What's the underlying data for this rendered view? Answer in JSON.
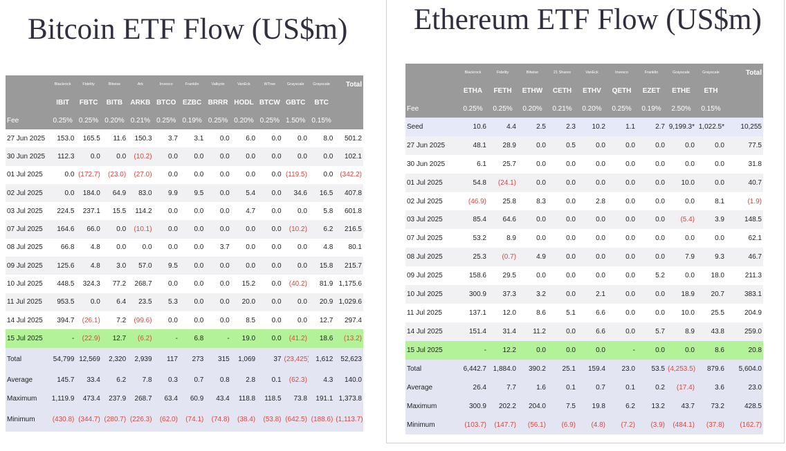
{
  "btc": {
    "title": "Bitcoin ETF Flow (US$m)",
    "providers": [
      "Blackrock",
      "Fidelity",
      "Bitwise",
      "Ark",
      "Invesco",
      "Franklin",
      "Valkyrie",
      "VanEck",
      "WTree",
      "Grayscale",
      "Grayscale"
    ],
    "total_label": "Total",
    "tickers": [
      "IBIT",
      "FBTC",
      "BITB",
      "ARKB",
      "BTCO",
      "EZBC",
      "BRRR",
      "HODL",
      "BTCW",
      "GBTC",
      "BTC"
    ],
    "fee_label": "Fee",
    "fees": [
      "0.25%",
      "0.25%",
      "0.20%",
      "0.21%",
      "0.25%",
      "0.19%",
      "0.25%",
      "0.20%",
      "0.25%",
      "1.50%",
      "0.15%"
    ],
    "rows": [
      {
        "date": "27 Jun 2025",
        "v": [
          "153.0",
          "165.5",
          "11.6",
          "150.3",
          "3.7",
          "3.1",
          "0.0",
          "6.0",
          "0.0",
          "0.0",
          "8.0"
        ],
        "total": "501.2"
      },
      {
        "date": "30 Jun 2025",
        "v": [
          "112.3",
          "0.0",
          "0.0",
          "(10.2)",
          "0.0",
          "0.0",
          "0.0",
          "0.0",
          "0.0",
          "0.0",
          "0.0"
        ],
        "total": "102.1"
      },
      {
        "date": "01 Jul 2025",
        "v": [
          "0.0",
          "(172.7)",
          "(23.0)",
          "(27.0)",
          "0.0",
          "0.0",
          "0.0",
          "0.0",
          "0.0",
          "(119.5)",
          "0.0"
        ],
        "total": "(342.2)"
      },
      {
        "date": "02 Jul 2025",
        "v": [
          "0.0",
          "184.0",
          "64.9",
          "83.0",
          "9.9",
          "9.5",
          "0.0",
          "5.4",
          "0.0",
          "34.6",
          "16.5"
        ],
        "total": "407.8"
      },
      {
        "date": "03 Jul 2025",
        "v": [
          "224.5",
          "237.1",
          "15.5",
          "114.2",
          "0.0",
          "0.0",
          "0.0",
          "4.7",
          "0.0",
          "0.0",
          "5.8"
        ],
        "total": "601.8"
      },
      {
        "date": "07 Jul 2025",
        "v": [
          "164.6",
          "66.0",
          "0.0",
          "(10.1)",
          "0.0",
          "0.0",
          "0.0",
          "0.0",
          "0.0",
          "(10.2)",
          "6.2"
        ],
        "total": "216.5"
      },
      {
        "date": "08 Jul 2025",
        "v": [
          "66.8",
          "4.8",
          "0.0",
          "0.0",
          "0.0",
          "0.0",
          "3.7",
          "0.0",
          "0.0",
          "0.0",
          "4.8"
        ],
        "total": "80.1"
      },
      {
        "date": "09 Jul 2025",
        "v": [
          "125.6",
          "4.8",
          "3.0",
          "57.0",
          "9.5",
          "0.0",
          "0.0",
          "0.0",
          "0.0",
          "0.0",
          "15.8"
        ],
        "total": "215.7"
      },
      {
        "date": "10 Jul 2025",
        "v": [
          "448.5",
          "324.3",
          "77.2",
          "268.7",
          "0.0",
          "0.0",
          "0.0",
          "15.2",
          "0.0",
          "(40.2)",
          "81.9"
        ],
        "total": "1,175.6"
      },
      {
        "date": "11 Jul 2025",
        "v": [
          "953.5",
          "0.0",
          "6.4",
          "23.5",
          "5.3",
          "0.0",
          "0.0",
          "20.0",
          "0.0",
          "0.0",
          "20.9"
        ],
        "total": "1,029.6"
      },
      {
        "date": "14 Jul 2025",
        "v": [
          "394.7",
          "(26.1)",
          "7.2",
          "(99.6)",
          "0.0",
          "0.0",
          "0.0",
          "8.5",
          "0.0",
          "0.0",
          "12.7"
        ],
        "total": "297.4"
      },
      {
        "date": "15 Jul 2025",
        "v": [
          "-",
          "(22.9)",
          "12.7",
          "(6.2)",
          "-",
          "6.8",
          "-",
          "19.0",
          "0.0",
          "(41.2)",
          "18.6"
        ],
        "total": "(13.2)",
        "hl": true
      }
    ],
    "stats": [
      {
        "label": "Total",
        "v": [
          "54,799",
          "12,569",
          "2,320",
          "2,939",
          "117",
          "273",
          "315",
          "1,069",
          "37",
          "(23,425)",
          "1,612"
        ],
        "total": "52,623"
      },
      {
        "label": "Average",
        "v": [
          "145.7",
          "33.4",
          "6.2",
          "7.8",
          "0.3",
          "0.7",
          "0.8",
          "2.8",
          "0.1",
          "(62.3)",
          "4.3"
        ],
        "total": "140.0"
      },
      {
        "label": "Maximum",
        "v": [
          "1,119.9",
          "473.4",
          "237.9",
          "268.7",
          "63.4",
          "60.9",
          "43.4",
          "118.8",
          "118.5",
          "73.8",
          "191.1"
        ],
        "total": "1,373.8"
      },
      {
        "label": "Minimum",
        "v": [
          "(430.8)",
          "(344.7)",
          "(280.7)",
          "(226.3)",
          "(62.0)",
          "(74.1)",
          "(74.8)",
          "(38.4)",
          "(53.8)",
          "(642.5)",
          "(188.6)"
        ],
        "total": "(1,113.7)"
      }
    ]
  },
  "eth": {
    "title": "Ethereum ETF Flow (US$m)",
    "providers": [
      "Blackrock",
      "Fidelity",
      "Bitwise",
      "21 Shares",
      "VanEck",
      "Invesco",
      "Franklin",
      "Grayscale",
      "Grayscale"
    ],
    "total_label": "Total",
    "tickers": [
      "ETHA",
      "FETH",
      "ETHW",
      "CETH",
      "ETHV",
      "QETH",
      "EZET",
      "ETHE",
      "ETH"
    ],
    "fee_label": "Fee",
    "fees": [
      "0.25%",
      "0.25%",
      "0.20%",
      "0.21%",
      "0.20%",
      "0.25%",
      "0.19%",
      "2.50%",
      "0.15%"
    ],
    "rows": [
      {
        "date": "Seed",
        "v": [
          "10.6",
          "4.4",
          "2.5",
          "2.3",
          "10.2",
          "1.1",
          "2.7",
          "9,199.3*",
          "1,022.5*"
        ],
        "total": "10,255",
        "seed": true
      },
      {
        "date": "27 Jun 2025",
        "v": [
          "48.1",
          "28.9",
          "0.0",
          "0.5",
          "0.0",
          "0.0",
          "0.0",
          "0.0",
          "0.0"
        ],
        "total": "77.5"
      },
      {
        "date": "30 Jun 2025",
        "v": [
          "6.1",
          "25.7",
          "0.0",
          "0.0",
          "0.0",
          "0.0",
          "0.0",
          "0.0",
          "0.0"
        ],
        "total": "31.8"
      },
      {
        "date": "01 Jul 2025",
        "v": [
          "54.8",
          "(24.1)",
          "0.0",
          "0.0",
          "0.0",
          "0.0",
          "0.0",
          "10.0",
          "0.0"
        ],
        "total": "40.7"
      },
      {
        "date": "02 Jul 2025",
        "v": [
          "(46.9)",
          "25.8",
          "8.3",
          "0.0",
          "2.8",
          "0.0",
          "0.0",
          "0.0",
          "8.1"
        ],
        "total": "(1.9)"
      },
      {
        "date": "03 Jul 2025",
        "v": [
          "85.4",
          "64.6",
          "0.0",
          "0.0",
          "0.0",
          "0.0",
          "0.0",
          "(5.4)",
          "3.9"
        ],
        "total": "148.5"
      },
      {
        "date": "07 Jul 2025",
        "v": [
          "53.2",
          "8.9",
          "0.0",
          "0.0",
          "0.0",
          "0.0",
          "0.0",
          "0.0",
          "0.0"
        ],
        "total": "62.1"
      },
      {
        "date": "08 Jul 2025",
        "v": [
          "25.3",
          "(0.7)",
          "4.9",
          "0.0",
          "0.0",
          "0.0",
          "0.0",
          "7.9",
          "9.3"
        ],
        "total": "46.7"
      },
      {
        "date": "09 Jul 2025",
        "v": [
          "158.6",
          "29.5",
          "0.0",
          "0.0",
          "0.0",
          "0.0",
          "5.2",
          "0.0",
          "18.0"
        ],
        "total": "211.3"
      },
      {
        "date": "10 Jul 2025",
        "v": [
          "300.9",
          "37.3",
          "3.2",
          "0.0",
          "2.1",
          "0.0",
          "0.0",
          "18.9",
          "20.7"
        ],
        "total": "383.1"
      },
      {
        "date": "11 Jul 2025",
        "v": [
          "137.1",
          "12.0",
          "8.6",
          "5.1",
          "6.6",
          "0.0",
          "0.0",
          "10.0",
          "25.5"
        ],
        "total": "204.9"
      },
      {
        "date": "14 Jul 2025",
        "v": [
          "151.4",
          "31.4",
          "11.2",
          "0.0",
          "6.6",
          "0.0",
          "5.7",
          "8.9",
          "43.8"
        ],
        "total": "259.0"
      },
      {
        "date": "15 Jul 2025",
        "v": [
          "-",
          "12.2",
          "0.0",
          "0.0",
          "0.0",
          "-",
          "0.0",
          "0.0",
          "8.6"
        ],
        "total": "20.8",
        "hl": true
      }
    ],
    "stats": [
      {
        "label": "Total",
        "v": [
          "6,442.7",
          "1,884.0",
          "390.2",
          "25.1",
          "159.4",
          "23.0",
          "53.5",
          "(4,253.5)",
          "879.6"
        ],
        "total": "5,604.0"
      },
      {
        "label": "Average",
        "v": [
          "26.4",
          "7.7",
          "1.6",
          "0.1",
          "0.7",
          "0.1",
          "0.2",
          "(17.4)",
          "3.6"
        ],
        "total": "23.0"
      },
      {
        "label": "Maximum",
        "v": [
          "300.9",
          "202.2",
          "204.0",
          "7.5",
          "19.8",
          "6.2",
          "13.2",
          "43.7",
          "73.2"
        ],
        "total": "428.5"
      },
      {
        "label": "Minimum",
        "v": [
          "(103.7)",
          "(147.7)",
          "(56.1)",
          "(6.9)",
          "(4.8)",
          "(7.2)",
          "(3.9)",
          "(484.1)",
          "(37.8)"
        ],
        "total": "(162.7)"
      }
    ]
  }
}
